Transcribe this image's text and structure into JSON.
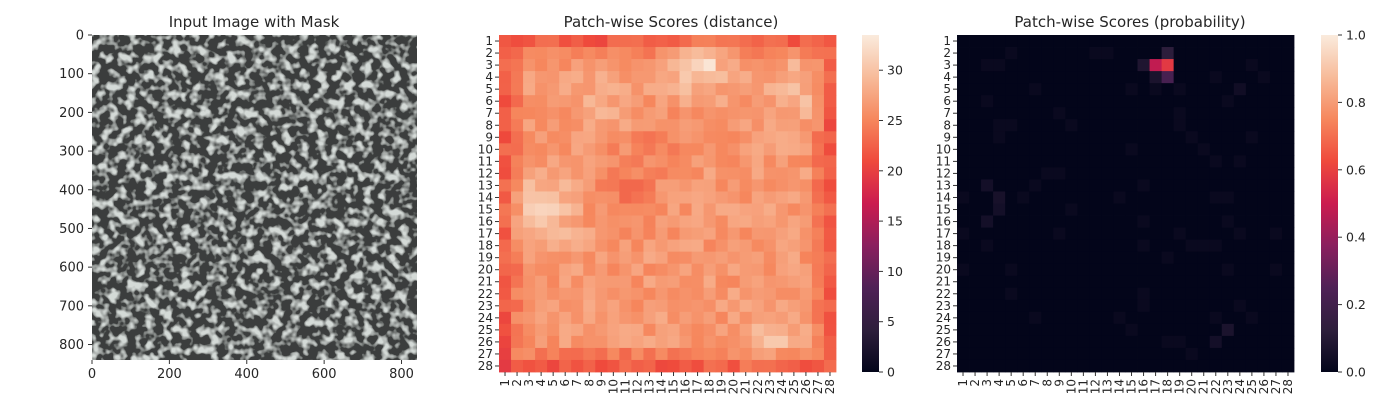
{
  "chart_data": [
    {
      "type": "image",
      "title": "Input Image with Mask",
      "xticks": [
        "0",
        "200",
        "400",
        "600",
        "800"
      ],
      "yticks": [
        "0",
        "100",
        "200",
        "300",
        "400",
        "500",
        "600",
        "700",
        "800"
      ],
      "xlim": [
        0,
        840
      ],
      "ylim": [
        840,
        0
      ],
      "content": "grey speckled surface texture",
      "colors": {
        "background": "#a9b2ac",
        "spots": "#3a3d3c"
      }
    },
    {
      "type": "heatmap",
      "title": "Patch-wise Scores (distance)",
      "x_categories": [
        "1",
        "2",
        "3",
        "4",
        "5",
        "6",
        "7",
        "8",
        "9",
        "10",
        "11",
        "12",
        "13",
        "14",
        "15",
        "16",
        "17",
        "18",
        "19",
        "20",
        "21",
        "22",
        "23",
        "24",
        "25",
        "26",
        "27",
        "28"
      ],
      "y_categories": [
        "1",
        "2",
        "3",
        "4",
        "5",
        "6",
        "7",
        "8",
        "9",
        "10",
        "11",
        "12",
        "13",
        "14",
        "15",
        "16",
        "17",
        "18",
        "19",
        "20",
        "21",
        "22",
        "23",
        "24",
        "25",
        "26",
        "27",
        "28"
      ],
      "colorbar": {
        "ticks": [
          "0",
          "5",
          "10",
          "15",
          "20",
          "25",
          "30"
        ],
        "range": [
          0,
          33.5
        ]
      },
      "description_values": {
        "border_level": 22,
        "interior_level": 26.5,
        "hotspots": [
          {
            "row": 3,
            "col": 18,
            "value": 33
          },
          {
            "row": 3,
            "col": 17,
            "value": 31.5
          },
          {
            "row": 3,
            "col": 16,
            "value": 30
          },
          {
            "row": 3,
            "col": 15,
            "value": 29
          },
          {
            "row": 15,
            "col": 4,
            "value": 31.5
          },
          {
            "row": 14,
            "col": 4,
            "value": 30
          },
          {
            "row": 16,
            "col": 4,
            "value": 30.5
          },
          {
            "row": 26,
            "col": 23,
            "value": 30.5
          },
          {
            "row": 26,
            "col": 24,
            "value": 30.5
          },
          {
            "row": 25,
            "col": 22,
            "value": 29.5
          },
          {
            "row": 5,
            "col": 25,
            "value": 30
          },
          {
            "row": 6,
            "col": 26,
            "value": 30
          }
        ],
        "coldspots": [
          {
            "row": 27,
            "col": 1,
            "value": 20
          },
          {
            "row": 28,
            "col": 1,
            "value": 19.5
          },
          {
            "row": 13,
            "col": 11,
            "value": 23
          },
          {
            "row": 14,
            "col": 11,
            "value": 23
          }
        ]
      }
    },
    {
      "type": "heatmap",
      "title": "Patch-wise Scores (probability)",
      "x_categories": [
        "1",
        "2",
        "3",
        "4",
        "5",
        "6",
        "7",
        "8",
        "9",
        "10",
        "11",
        "12",
        "13",
        "14",
        "15",
        "16",
        "17",
        "18",
        "19",
        "20",
        "21",
        "22",
        "23",
        "24",
        "25",
        "26",
        "27",
        "28"
      ],
      "y_categories": [
        "1",
        "2",
        "3",
        "4",
        "5",
        "6",
        "7",
        "8",
        "9",
        "10",
        "11",
        "12",
        "13",
        "14",
        "15",
        "16",
        "17",
        "18",
        "19",
        "20",
        "21",
        "22",
        "23",
        "24",
        "25",
        "26",
        "27",
        "28"
      ],
      "colorbar": {
        "ticks": [
          "0.0",
          "0.2",
          "0.4",
          "0.6",
          "0.8",
          "1.0"
        ],
        "range": [
          0,
          1
        ]
      },
      "description_values": {
        "background_level": 0.0,
        "hotspots": [
          {
            "row": 3,
            "col": 17,
            "value": 0.48
          },
          {
            "row": 3,
            "col": 18,
            "value": 0.58
          },
          {
            "row": 2,
            "col": 18,
            "value": 0.12
          },
          {
            "row": 4,
            "col": 18,
            "value": 0.22
          },
          {
            "row": 3,
            "col": 16,
            "value": 0.08
          },
          {
            "row": 4,
            "col": 17,
            "value": 0.07
          },
          {
            "row": 13,
            "col": 3,
            "value": 0.05
          },
          {
            "row": 14,
            "col": 4,
            "value": 0.06
          },
          {
            "row": 15,
            "col": 4,
            "value": 0.05
          },
          {
            "row": 16,
            "col": 3,
            "value": 0.05
          },
          {
            "row": 25,
            "col": 23,
            "value": 0.07
          },
          {
            "row": 26,
            "col": 22,
            "value": 0.05
          },
          {
            "row": 5,
            "col": 24,
            "value": 0.04
          }
        ]
      }
    }
  ]
}
